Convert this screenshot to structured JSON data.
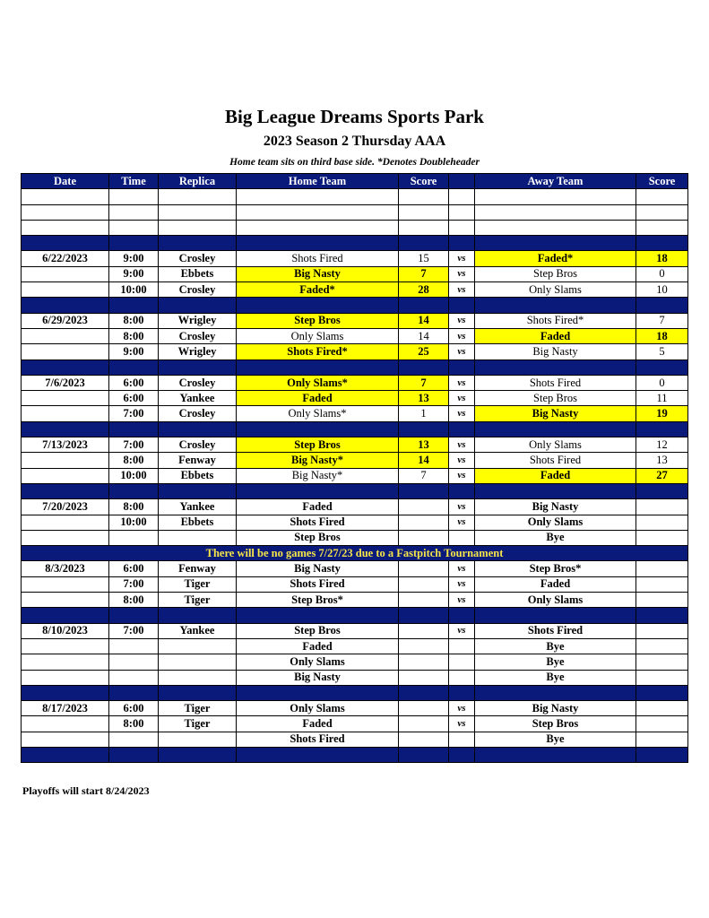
{
  "header": {
    "title": "Big League Dreams Sports Park",
    "subtitle": "2023 Season 2 Thursday AAA",
    "note": "Home team sits on third base side.  *Denotes Doubleheader"
  },
  "columns": [
    "Date",
    "Time",
    "Replica",
    "Home Team",
    "Score",
    "",
    "Away Team",
    "Score"
  ],
  "colors": {
    "header_bg": "#0a1a7a",
    "highlight": "#ffff00",
    "notice_text": "#f5e44a"
  },
  "rows": [
    {
      "type": "blank"
    },
    {
      "type": "blank"
    },
    {
      "type": "blank"
    },
    {
      "type": "sep"
    },
    {
      "type": "game",
      "date": "6/22/2023",
      "time": "9:00",
      "replica": "Crosley",
      "home": "Shots Fired",
      "home_score": "15",
      "vs": "vs",
      "away": "Faded*",
      "away_score": "18",
      "winner": "away"
    },
    {
      "type": "game",
      "date": "",
      "time": "9:00",
      "replica": "Ebbets",
      "home": "Big Nasty",
      "home_score": "7",
      "vs": "vs",
      "away": "Step Bros",
      "away_score": "0",
      "winner": "home"
    },
    {
      "type": "game",
      "date": "",
      "time": "10:00",
      "replica": "Crosley",
      "home": "Faded*",
      "home_score": "28",
      "vs": "vs",
      "away": "Only Slams",
      "away_score": "10",
      "winner": "home"
    },
    {
      "type": "sep"
    },
    {
      "type": "game",
      "date": "6/29/2023",
      "time": "8:00",
      "replica": "Wrigley",
      "home": "Step Bros",
      "home_score": "14",
      "vs": "vs",
      "away": "Shots Fired*",
      "away_score": "7",
      "winner": "home"
    },
    {
      "type": "game",
      "date": "",
      "time": "8:00",
      "replica": "Crosley",
      "home": "Only Slams",
      "home_score": "14",
      "vs": "vs",
      "away": "Faded",
      "away_score": "18",
      "winner": "away"
    },
    {
      "type": "game",
      "date": "",
      "time": "9:00",
      "replica": "Wrigley",
      "home": "Shots Fired*",
      "home_score": "25",
      "vs": "vs",
      "away": "Big Nasty",
      "away_score": "5",
      "winner": "home"
    },
    {
      "type": "sep"
    },
    {
      "type": "game",
      "date": "7/6/2023",
      "time": "6:00",
      "replica": "Crosley",
      "home": "Only Slams*",
      "home_score": "7",
      "vs": "vs",
      "away": "Shots Fired",
      "away_score": "0",
      "winner": "home"
    },
    {
      "type": "game",
      "date": "",
      "time": "6:00",
      "replica": "Yankee",
      "home": "Faded",
      "home_score": "13",
      "vs": "vs",
      "away": "Step Bros",
      "away_score": "11",
      "winner": "home"
    },
    {
      "type": "game",
      "date": "",
      "time": "7:00",
      "replica": "Crosley",
      "home": "Only Slams*",
      "home_score": "1",
      "vs": "vs",
      "away": "Big Nasty",
      "away_score": "19",
      "winner": "away"
    },
    {
      "type": "sep"
    },
    {
      "type": "game",
      "date": "7/13/2023",
      "time": "7:00",
      "replica": "Crosley",
      "home": "Step Bros",
      "home_score": "13",
      "vs": "vs",
      "away": "Only Slams",
      "away_score": "12",
      "winner": "home"
    },
    {
      "type": "game",
      "date": "",
      "time": "8:00",
      "replica": "Fenway",
      "home": "Big Nasty*",
      "home_score": "14",
      "vs": "vs",
      "away": "Shots Fired",
      "away_score": "13",
      "winner": "home"
    },
    {
      "type": "game",
      "date": "",
      "time": "10:00",
      "replica": "Ebbets",
      "home": "Big Nasty*",
      "home_score": "7",
      "vs": "vs",
      "away": "Faded",
      "away_score": "27",
      "winner": "away"
    },
    {
      "type": "sep"
    },
    {
      "type": "game",
      "date": "7/20/2023",
      "time": "8:00",
      "replica": "Yankee",
      "home": "Faded",
      "home_score": "",
      "vs": "vs",
      "away": "Big Nasty",
      "away_score": ""
    },
    {
      "type": "game",
      "date": "",
      "time": "10:00",
      "replica": "Ebbets",
      "home": "Shots Fired",
      "home_score": "",
      "vs": "vs",
      "away": "Only Slams",
      "away_score": ""
    },
    {
      "type": "game",
      "date": "",
      "time": "",
      "replica": "",
      "home": "Step Bros",
      "home_score": "",
      "vs": "",
      "away": "Bye",
      "away_score": ""
    },
    {
      "type": "notice",
      "text": "There will be no games 7/27/23 due to a Fastpitch Tournament"
    },
    {
      "type": "game",
      "date": "8/3/2023",
      "time": "6:00",
      "replica": "Fenway",
      "home": "Big Nasty",
      "home_score": "",
      "vs": "vs",
      "away": "Step Bros*",
      "away_score": ""
    },
    {
      "type": "game",
      "date": "",
      "time": "7:00",
      "replica": "Tiger",
      "home": "Shots Fired",
      "home_score": "",
      "vs": "vs",
      "away": "Faded",
      "away_score": ""
    },
    {
      "type": "game",
      "date": "",
      "time": "8:00",
      "replica": "Tiger",
      "home": "Step Bros*",
      "home_score": "",
      "vs": "vs",
      "away": "Only Slams",
      "away_score": ""
    },
    {
      "type": "sep"
    },
    {
      "type": "game",
      "date": "8/10/2023",
      "time": "7:00",
      "replica": "Yankee",
      "home": "Step Bros",
      "home_score": "",
      "vs": "vs",
      "away": "Shots Fired",
      "away_score": ""
    },
    {
      "type": "game",
      "date": "",
      "time": "",
      "replica": "",
      "home": "Faded",
      "home_score": "",
      "vs": "",
      "away": "Bye",
      "away_score": ""
    },
    {
      "type": "game",
      "date": "",
      "time": "",
      "replica": "",
      "home": "Only Slams",
      "home_score": "",
      "vs": "",
      "away": "Bye",
      "away_score": ""
    },
    {
      "type": "game",
      "date": "",
      "time": "",
      "replica": "",
      "home": "Big Nasty",
      "home_score": "",
      "vs": "",
      "away": "Bye",
      "away_score": ""
    },
    {
      "type": "sep"
    },
    {
      "type": "game",
      "date": "8/17/2023",
      "time": "6:00",
      "replica": "Tiger",
      "home": "Only Slams",
      "home_score": "",
      "vs": "vs",
      "away": "Big Nasty",
      "away_score": ""
    },
    {
      "type": "game",
      "date": "",
      "time": "8:00",
      "replica": "Tiger",
      "home": "Faded",
      "home_score": "",
      "vs": "vs",
      "away": "Step Bros",
      "away_score": ""
    },
    {
      "type": "game",
      "date": "",
      "time": "",
      "replica": "",
      "home": "Shots Fired",
      "home_score": "",
      "vs": "",
      "away": "Bye",
      "away_score": ""
    },
    {
      "type": "sep"
    }
  ],
  "footer": "Playoffs will start 8/24/2023"
}
